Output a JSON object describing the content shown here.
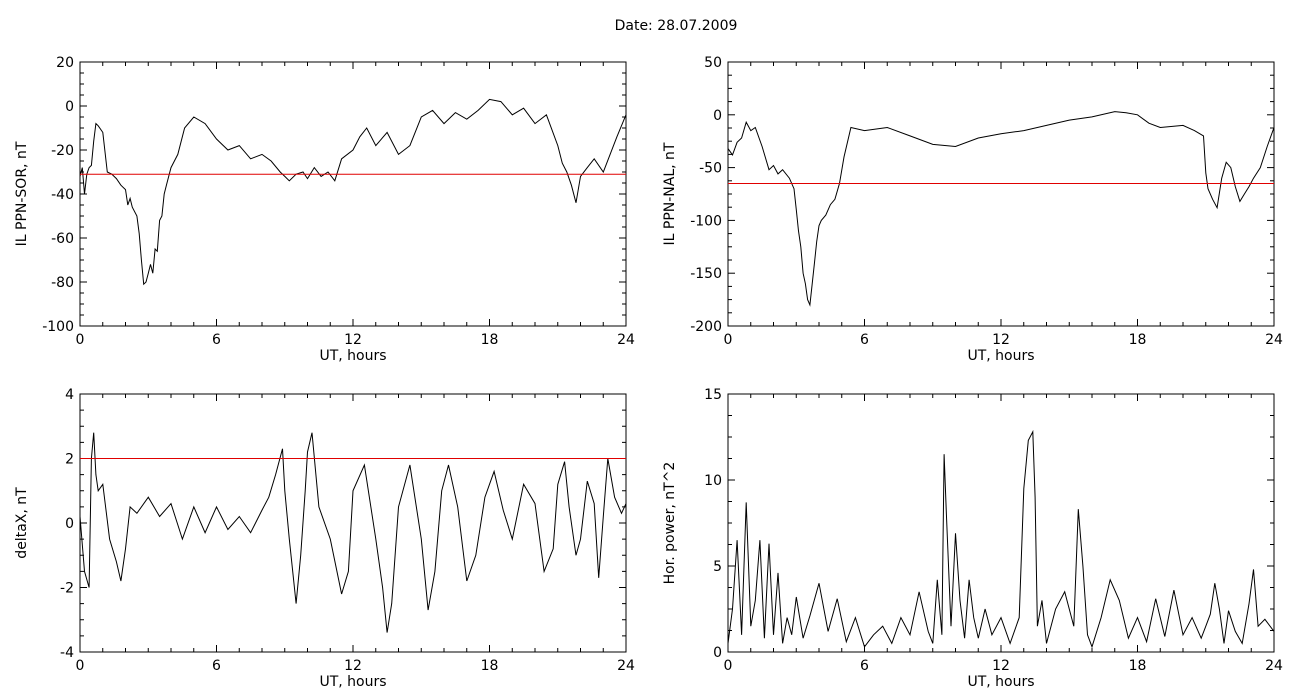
{
  "figure_title": "Date:  28.07.2009",
  "chart_data": [
    {
      "type": "line",
      "ylabel": "IL PPN-SOR, nT",
      "xlabel": "UT, hours",
      "xlim": [
        0,
        24
      ],
      "ylim": [
        -100,
        20
      ],
      "xticks": [
        0,
        6,
        12,
        18,
        24
      ],
      "yticks": [
        20,
        0,
        -20,
        -40,
        -60,
        -80,
        -100
      ],
      "threshold": -31,
      "series": [
        {
          "x": [
            0,
            0.1,
            0.2,
            0.3,
            0.4,
            0.5,
            0.6,
            0.7,
            0.8,
            1.0,
            1.2,
            1.4,
            1.6,
            1.8,
            2.0,
            2.1,
            2.2,
            2.3,
            2.5,
            2.6,
            2.7,
            2.8,
            2.9,
            3.0,
            3.1,
            3.2,
            3.3,
            3.4,
            3.5,
            3.6,
            3.7,
            3.8,
            3.9,
            4.0,
            4.3,
            4.6,
            5.0,
            5.5,
            6.0,
            6.5,
            7.0,
            7.5,
            8.0,
            8.4,
            8.8,
            9.0,
            9.2,
            9.5,
            9.8,
            10.0,
            10.3,
            10.6,
            10.9,
            11.2,
            11.5,
            12.0,
            12.3,
            12.6,
            13.0,
            13.5,
            14.0,
            14.5,
            15.0,
            15.5,
            16.0,
            16.5,
            17.0,
            17.5,
            18.0,
            18.5,
            19.0,
            19.5,
            20.0,
            20.5,
            21.0,
            21.2,
            21.4,
            21.6,
            21.8,
            22.0,
            22.3,
            22.6,
            23.0,
            23.3,
            23.6,
            24.0
          ],
          "y": [
            -32,
            -28,
            -40,
            -31,
            -28,
            -27,
            -16,
            -8,
            -9,
            -12,
            -30,
            -31,
            -33,
            -36,
            -38,
            -45,
            -42,
            -46,
            -50,
            -58,
            -70,
            -81,
            -80,
            -76,
            -72,
            -76,
            -65,
            -66,
            -52,
            -50,
            -40,
            -36,
            -32,
            -28,
            -22,
            -10,
            -5,
            -8,
            -15,
            -20,
            -18,
            -24,
            -22,
            -25,
            -30,
            -32,
            -34,
            -31,
            -30,
            -33,
            -28,
            -32,
            -30,
            -34,
            -24,
            -20,
            -14,
            -10,
            -18,
            -12,
            -22,
            -18,
            -5,
            -2,
            -8,
            -3,
            -6,
            -2,
            3,
            2,
            -4,
            -1,
            -8,
            -4,
            -18,
            -26,
            -30,
            -36,
            -44,
            -32,
            -28,
            -24,
            -30,
            -22,
            -14,
            -4
          ]
        }
      ]
    },
    {
      "type": "line",
      "ylabel": "IL PPN-NAL, nT",
      "xlabel": "UT, hours",
      "xlim": [
        0,
        24
      ],
      "ylim": [
        -200,
        50
      ],
      "xticks": [
        0,
        6,
        12,
        18,
        24
      ],
      "yticks": [
        50,
        0,
        -50,
        -100,
        -150,
        -200
      ],
      "threshold": -65,
      "series": [
        {
          "x": [
            0,
            0.2,
            0.4,
            0.6,
            0.8,
            1.0,
            1.2,
            1.5,
            1.8,
            2.0,
            2.2,
            2.4,
            2.7,
            2.9,
            3.0,
            3.1,
            3.2,
            3.3,
            3.4,
            3.5,
            3.6,
            3.7,
            3.8,
            3.9,
            4.0,
            4.1,
            4.3,
            4.5,
            4.7,
            4.9,
            5.1,
            5.4,
            6.0,
            7.0,
            8.0,
            9.0,
            10.0,
            11.0,
            12.0,
            13.0,
            14.0,
            15.0,
            16.0,
            17.0,
            17.5,
            18.0,
            18.5,
            19.0,
            20.0,
            20.5,
            20.9,
            21.0,
            21.1,
            21.3,
            21.5,
            21.7,
            21.9,
            22.1,
            22.3,
            22.5,
            22.7,
            22.9,
            23.1,
            23.4,
            23.7,
            24.0
          ],
          "y": [
            -32,
            -38,
            -26,
            -22,
            -7,
            -15,
            -12,
            -30,
            -52,
            -48,
            -56,
            -52,
            -60,
            -70,
            -90,
            -110,
            -125,
            -150,
            -160,
            -175,
            -180,
            -160,
            -140,
            -120,
            -105,
            -100,
            -95,
            -85,
            -80,
            -65,
            -40,
            -12,
            -15,
            -12,
            -20,
            -28,
            -30,
            -22,
            -18,
            -15,
            -10,
            -5,
            -2,
            3,
            2,
            0,
            -8,
            -12,
            -10,
            -15,
            -20,
            -55,
            -70,
            -80,
            -88,
            -60,
            -45,
            -50,
            -68,
            -82,
            -75,
            -68,
            -60,
            -50,
            -30,
            -12
          ]
        }
      ]
    },
    {
      "type": "line",
      "ylabel": "deltaX, nT",
      "xlabel": "UT, hours",
      "xlim": [
        0,
        24
      ],
      "ylim": [
        -4,
        4
      ],
      "xticks": [
        0,
        6,
        12,
        18,
        24
      ],
      "yticks": [
        4,
        2,
        0,
        -2,
        -4
      ],
      "threshold": 2,
      "series": [
        {
          "x": [
            0,
            0.2,
            0.4,
            0.5,
            0.6,
            0.7,
            0.8,
            1.0,
            1.3,
            1.6,
            1.8,
            2.0,
            2.2,
            2.5,
            3.0,
            3.5,
            4.0,
            4.5,
            5.0,
            5.5,
            6.0,
            6.5,
            7.0,
            7.5,
            8.0,
            8.3,
            8.6,
            8.9,
            9.0,
            9.2,
            9.5,
            9.7,
            9.9,
            10.0,
            10.2,
            10.5,
            11.0,
            11.5,
            11.8,
            12.0,
            12.5,
            13.0,
            13.3,
            13.5,
            13.7,
            14.0,
            14.5,
            15.0,
            15.3,
            15.6,
            15.9,
            16.2,
            16.6,
            17.0,
            17.4,
            17.8,
            18.2,
            18.6,
            19.0,
            19.5,
            20.0,
            20.4,
            20.8,
            21.0,
            21.3,
            21.5,
            21.8,
            22.0,
            22.3,
            22.6,
            22.8,
            23.0,
            23.2,
            23.5,
            23.8,
            24.0
          ],
          "y": [
            0.2,
            -1.5,
            -2.0,
            2.0,
            2.8,
            1.5,
            1.0,
            1.2,
            -0.5,
            -1.2,
            -1.8,
            -0.8,
            0.5,
            0.3,
            0.8,
            0.2,
            0.6,
            -0.5,
            0.5,
            -0.3,
            0.5,
            -0.2,
            0.2,
            -0.3,
            0.4,
            0.8,
            1.5,
            2.3,
            1.0,
            -0.5,
            -2.5,
            -1.0,
            1.0,
            2.2,
            2.8,
            0.5,
            -0.5,
            -2.2,
            -1.5,
            1.0,
            1.8,
            -0.5,
            -2.0,
            -3.4,
            -2.5,
            0.5,
            1.8,
            -0.5,
            -2.7,
            -1.5,
            1.0,
            1.8,
            0.5,
            -1.8,
            -1.0,
            0.8,
            1.6,
            0.4,
            -0.5,
            1.2,
            0.6,
            -1.5,
            -0.8,
            1.2,
            1.9,
            0.5,
            -1.0,
            -0.5,
            1.3,
            0.6,
            -1.7,
            0.2,
            2.0,
            0.8,
            0.3,
            0.6
          ]
        }
      ]
    },
    {
      "type": "line",
      "ylabel": "Hor. power, nT^2",
      "xlabel": "UT, hours",
      "xlim": [
        0,
        24
      ],
      "ylim": [
        0,
        15
      ],
      "xticks": [
        0,
        6,
        12,
        18,
        24
      ],
      "yticks": [
        15,
        10,
        5,
        0
      ],
      "series": [
        {
          "x": [
            0,
            0.2,
            0.4,
            0.6,
            0.8,
            1.0,
            1.2,
            1.4,
            1.6,
            1.8,
            2.0,
            2.2,
            2.4,
            2.6,
            2.8,
            3.0,
            3.3,
            3.6,
            4.0,
            4.4,
            4.8,
            5.2,
            5.6,
            6.0,
            6.4,
            6.8,
            7.2,
            7.6,
            8.0,
            8.4,
            8.8,
            9.0,
            9.2,
            9.4,
            9.5,
            9.6,
            9.8,
            10.0,
            10.2,
            10.4,
            10.6,
            10.8,
            11.0,
            11.3,
            11.6,
            12.0,
            12.4,
            12.8,
            13.0,
            13.2,
            13.4,
            13.5,
            13.6,
            13.8,
            14.0,
            14.4,
            14.8,
            15.2,
            15.4,
            15.6,
            15.8,
            16.0,
            16.4,
            16.8,
            17.2,
            17.6,
            18.0,
            18.4,
            18.8,
            19.2,
            19.6,
            20.0,
            20.4,
            20.8,
            21.0,
            21.2,
            21.4,
            21.6,
            21.8,
            22.0,
            22.3,
            22.6,
            22.9,
            23.1,
            23.3,
            23.6,
            24.0
          ],
          "y": [
            0.5,
            2.5,
            6.5,
            1.0,
            8.7,
            1.5,
            3.0,
            6.5,
            0.8,
            6.3,
            1.0,
            4.6,
            0.5,
            2.0,
            1.0,
            3.2,
            0.8,
            2.1,
            4.0,
            1.2,
            3.1,
            0.6,
            2.0,
            0.3,
            1.0,
            1.5,
            0.5,
            2.0,
            1.0,
            3.5,
            1.2,
            0.5,
            4.2,
            1.0,
            11.5,
            8.0,
            1.5,
            6.9,
            3.0,
            0.8,
            4.2,
            2.0,
            0.8,
            2.5,
            1.0,
            2.0,
            0.5,
            2.0,
            9.5,
            12.3,
            12.8,
            9.0,
            1.5,
            3.0,
            0.5,
            2.5,
            3.5,
            1.5,
            8.3,
            5.0,
            1.0,
            0.3,
            2.0,
            4.2,
            3.0,
            0.8,
            2.0,
            0.6,
            3.1,
            0.9,
            3.6,
            1.0,
            2.0,
            0.8,
            1.5,
            2.2,
            4.0,
            2.5,
            0.5,
            2.4,
            1.2,
            0.5,
            2.8,
            4.8,
            1.5,
            1.9,
            1.2
          ]
        }
      ]
    }
  ]
}
